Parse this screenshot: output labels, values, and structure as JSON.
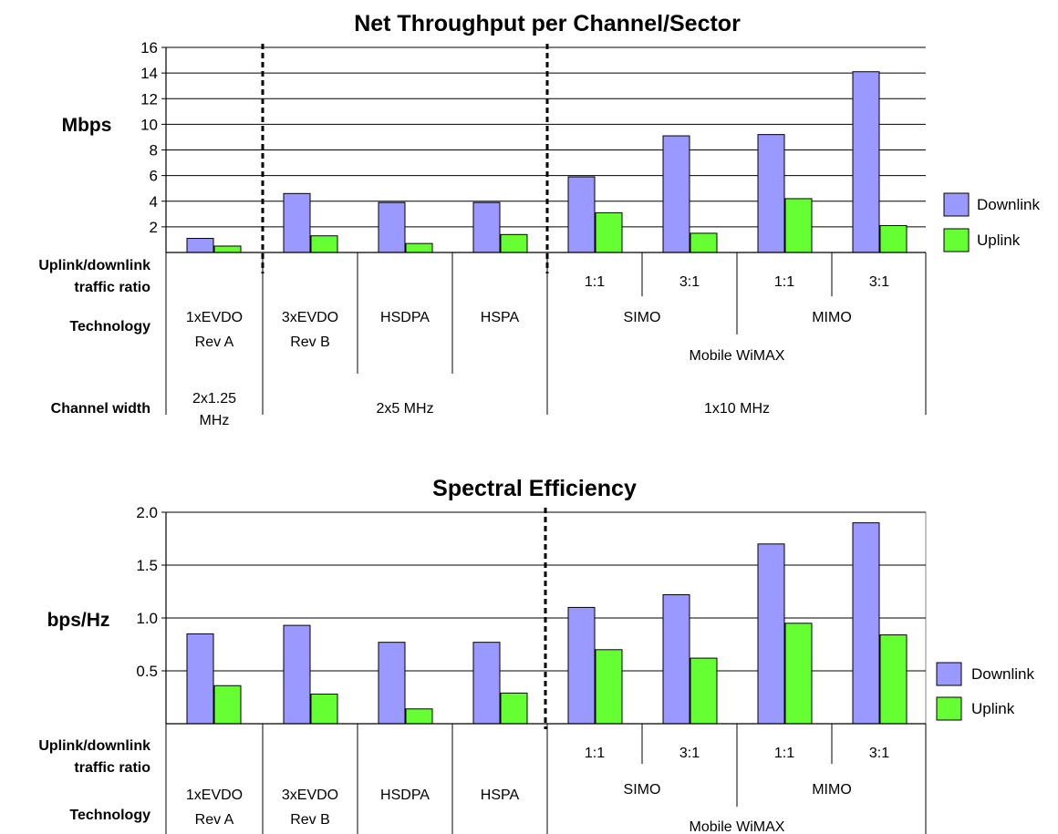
{
  "chart_data": [
    {
      "type": "bar",
      "title": "Net Throughput per Channel/Sector",
      "ylabel": "Mbps",
      "ylim": [
        0,
        16
      ],
      "yticks": [
        "16",
        "14",
        "12",
        "10",
        "8",
        "6",
        "4",
        "2"
      ],
      "grid": true,
      "legend_position": "right",
      "categories": [
        "1xEVDO Rev A",
        "3xEVDO Rev B",
        "HSDPA",
        "HSPA",
        "SIMO 1:1",
        "SIMO 3:1",
        "MIMO 1:1",
        "MIMO 3:1"
      ],
      "series": [
        {
          "name": "Downlink",
          "color": "#9999ff",
          "values": [
            1.1,
            4.6,
            3.9,
            3.9,
            5.9,
            9.1,
            9.2,
            14.1
          ]
        },
        {
          "name": "Uplink",
          "color": "#66ff33",
          "values": [
            0.5,
            1.3,
            0.7,
            1.4,
            3.1,
            1.5,
            4.2,
            2.1
          ]
        }
      ],
      "table": {
        "row_labels": [
          "Uplink/downlink",
          "traffic ratio",
          "Technology",
          "Channel width"
        ],
        "ratio": [
          "1:1",
          "3:1",
          "1:1",
          "3:1"
        ],
        "technology": [
          [
            "1xEVDO",
            "Rev A"
          ],
          [
            "3xEVDO",
            "Rev B"
          ],
          [
            "HSDPA"
          ],
          [
            "HSPA"
          ],
          [
            "SIMO"
          ],
          [
            "MIMO"
          ]
        ],
        "group": "Mobile WiMAX",
        "channel_width": [
          [
            "2x1.25",
            "MHz"
          ],
          [
            "2x5 MHz"
          ],
          [
            "1x10 MHz"
          ]
        ]
      }
    },
    {
      "type": "bar",
      "title": "Spectral Efficiency",
      "ylabel": "bps/Hz",
      "ylim": [
        0,
        2.0
      ],
      "yticks": [
        "2.0",
        "1.5",
        "1.0",
        "0.5"
      ],
      "grid": true,
      "legend_position": "right",
      "categories": [
        "1xEVDO Rev A",
        "3xEVDO Rev B",
        "HSDPA",
        "HSPA",
        "SIMO 1:1",
        "SIMO 3:1",
        "MIMO 1:1",
        "MIMO 3:1"
      ],
      "series": [
        {
          "name": "Downlink",
          "color": "#9999ff",
          "values": [
            0.85,
            0.93,
            0.77,
            0.77,
            1.1,
            1.22,
            1.7,
            1.9
          ]
        },
        {
          "name": "Uplink",
          "color": "#66ff33",
          "values": [
            0.36,
            0.28,
            0.14,
            0.29,
            0.7,
            0.62,
            0.95,
            0.84
          ]
        }
      ],
      "table": {
        "row_labels": [
          "Uplink/downlink",
          "traffic ratio",
          "Technology"
        ],
        "ratio": [
          "1:1",
          "3:1",
          "1:1",
          "3:1"
        ],
        "technology": [
          [
            "1xEVDO",
            "Rev A"
          ],
          [
            "3xEVDO",
            "Rev B"
          ],
          [
            "HSDPA"
          ],
          [
            "HSPA"
          ],
          [
            "SIMO"
          ],
          [
            "MIMO"
          ]
        ],
        "group": "Mobile WiMAX"
      }
    }
  ]
}
